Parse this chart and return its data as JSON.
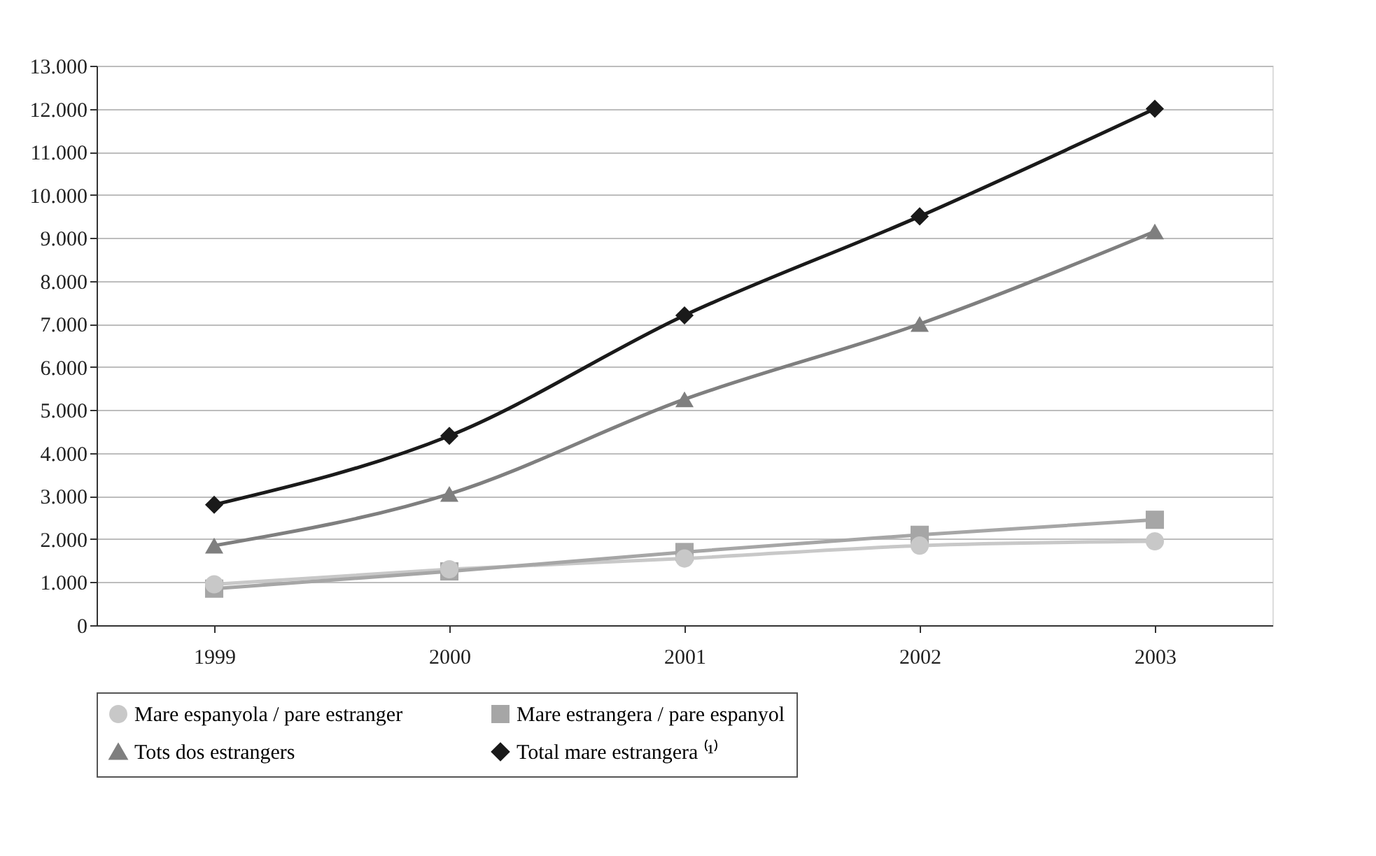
{
  "chart_data": {
    "type": "line",
    "categories": [
      "1999",
      "2000",
      "2001",
      "2002",
      "2003"
    ],
    "series": [
      {
        "name": "Mare espanyola / pare estranger",
        "color": "#c8c8c8",
        "marker": "circle",
        "values": [
          950,
          1300,
          1550,
          1850,
          1950
        ]
      },
      {
        "name": "Mare estrangera / pare espanyol",
        "color": "#a6a6a6",
        "marker": "square",
        "values": [
          850,
          1250,
          1700,
          2100,
          2450
        ]
      },
      {
        "name": "Tots dos estrangers",
        "color": "#7f7f7f",
        "marker": "triangle",
        "values": [
          1850,
          3050,
          5250,
          7000,
          9150
        ]
      },
      {
        "name": "Total mare estrangera ⁽¹⁾",
        "color": "#1a1a1a",
        "marker": "diamond",
        "values": [
          2800,
          4400,
          7200,
          9500,
          12000
        ]
      }
    ],
    "ylim": [
      0,
      13000
    ],
    "yticks": [
      0,
      {
        "value": 1000,
        "label": "1.000"
      },
      {
        "value": 2000,
        "label": "2.000"
      },
      {
        "value": 3000,
        "label": "3.000"
      },
      {
        "value": 4000,
        "label": "4.000"
      },
      {
        "value": 5000,
        "label": "5.000"
      },
      {
        "value": 6000,
        "label": "6.000"
      },
      {
        "value": 7000,
        "label": "7.000"
      },
      {
        "value": 8000,
        "label": "8.000"
      },
      {
        "value": 9000,
        "label": "9.000"
      },
      {
        "value": 10000,
        "label": "10.000"
      },
      {
        "value": 11000,
        "label": "11.000"
      },
      {
        "value": 12000,
        "label": "12.000"
      },
      {
        "value": 13000,
        "label": "13.000"
      }
    ],
    "grid": "y",
    "legend": "bottom",
    "line_style": "solid"
  }
}
